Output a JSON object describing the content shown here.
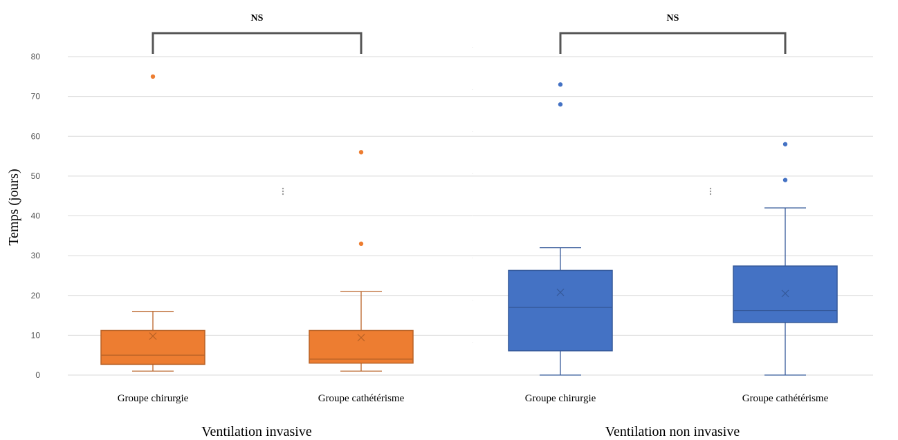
{
  "chart_data": {
    "type": "box",
    "ylabel": "Temps (jours)",
    "ylim": [
      0,
      80
    ],
    "yticks": [
      0,
      10,
      20,
      30,
      40,
      50,
      60,
      70,
      80
    ],
    "grid": true,
    "panels": [
      {
        "label": "Ventilation invasive",
        "significance": "NS",
        "color": "#ED7D31",
        "groups": [
          {
            "label": "Groupe chirurgie",
            "min": 1,
            "q1": 2.7,
            "median": 5,
            "q3": 11.2,
            "max": 16,
            "mean": 9.8,
            "outliers": [
              75
            ]
          },
          {
            "label": "Groupe cathétérisme",
            "min": 1,
            "q1": 3,
            "median": 4,
            "q3": 11.2,
            "max": 21,
            "mean": 9.4,
            "outliers": [
              56,
              33
            ]
          }
        ]
      },
      {
        "label": "Ventilation non invasive",
        "significance": "NS",
        "color": "#4472C4",
        "groups": [
          {
            "label": "Groupe chirurgie",
            "min": 0,
            "q1": 6.1,
            "median": 17,
            "q3": 26.3,
            "max": 32,
            "mean": 20.8,
            "outliers": [
              73,
              68
            ]
          },
          {
            "label": "Groupe cathétérisme",
            "min": 0,
            "q1": 13.2,
            "median": 16.2,
            "q3": 27.4,
            "max": 42,
            "mean": 20.5,
            "outliers": [
              58,
              49
            ]
          }
        ]
      }
    ]
  }
}
